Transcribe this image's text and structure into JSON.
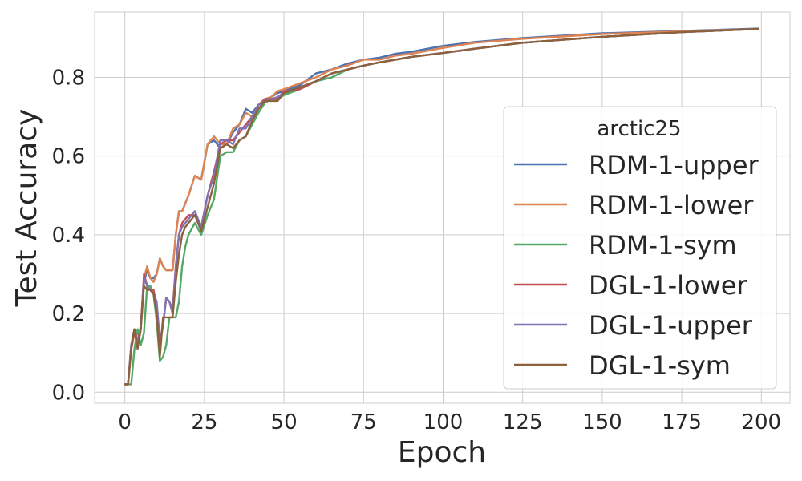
{
  "chart_data": {
    "type": "line",
    "title": "",
    "xlabel": "Epoch",
    "ylabel": "Test Accuracy",
    "xlim": [
      -9.5,
      209
    ],
    "ylim": [
      -0.028,
      0.966
    ],
    "xticks": [
      0,
      25,
      50,
      75,
      100,
      125,
      150,
      175,
      200
    ],
    "yticks": [
      0.0,
      0.2,
      0.4,
      0.6,
      0.8
    ],
    "ytick_labels": [
      "0.0",
      "0.2",
      "0.4",
      "0.6",
      "0.8"
    ],
    "grid": true,
    "legend": {
      "title": "arctic25",
      "placement": "center-right"
    },
    "series": [
      {
        "name": "RDM-1-upper",
        "color": "#4c72b0",
        "x": [
          0,
          1,
          2,
          3,
          4,
          5,
          6,
          7,
          8,
          9,
          10,
          11,
          12,
          13,
          14,
          15,
          16,
          17,
          18,
          19,
          20,
          22,
          24,
          26,
          28,
          30,
          32,
          34,
          36,
          38,
          40,
          42,
          44,
          46,
          48,
          50,
          55,
          60,
          65,
          70,
          75,
          80,
          85,
          90,
          100,
          110,
          125,
          150,
          175,
          199
        ],
        "y": [
          0.02,
          0.02,
          0.11,
          0.15,
          0.12,
          0.17,
          0.28,
          0.31,
          0.29,
          0.29,
          0.3,
          0.34,
          0.32,
          0.31,
          0.31,
          0.31,
          0.4,
          0.46,
          0.46,
          0.48,
          0.5,
          0.55,
          0.54,
          0.63,
          0.64,
          0.62,
          0.63,
          0.66,
          0.68,
          0.72,
          0.71,
          0.73,
          0.74,
          0.75,
          0.76,
          0.765,
          0.78,
          0.81,
          0.82,
          0.835,
          0.845,
          0.85,
          0.86,
          0.865,
          0.88,
          0.89,
          0.9,
          0.912,
          0.918,
          0.924
        ]
      },
      {
        "name": "RDM-1-lower",
        "color": "#dd8452",
        "x": [
          0,
          1,
          2,
          3,
          4,
          5,
          6,
          7,
          8,
          9,
          10,
          11,
          12,
          13,
          14,
          15,
          16,
          17,
          18,
          19,
          20,
          22,
          24,
          26,
          28,
          30,
          32,
          34,
          36,
          38,
          40,
          42,
          44,
          46,
          48,
          50,
          55,
          60,
          65,
          70,
          75,
          80,
          85,
          90,
          100,
          110,
          125,
          150,
          175,
          199
        ],
        "y": [
          0.02,
          0.02,
          0.11,
          0.15,
          0.12,
          0.17,
          0.29,
          0.32,
          0.29,
          0.28,
          0.3,
          0.34,
          0.32,
          0.31,
          0.31,
          0.31,
          0.4,
          0.46,
          0.46,
          0.48,
          0.5,
          0.55,
          0.54,
          0.63,
          0.65,
          0.63,
          0.63,
          0.67,
          0.68,
          0.71,
          0.7,
          0.73,
          0.745,
          0.75,
          0.765,
          0.77,
          0.785,
          0.8,
          0.82,
          0.83,
          0.845,
          0.845,
          0.855,
          0.86,
          0.875,
          0.888,
          0.898,
          0.91,
          0.917,
          0.923
        ]
      },
      {
        "name": "RDM-1-sym",
        "color": "#55a868",
        "x": [
          0,
          1,
          2,
          3,
          4,
          5,
          6,
          7,
          8,
          9,
          10,
          11,
          12,
          13,
          14,
          15,
          16,
          17,
          18,
          19,
          20,
          22,
          24,
          26,
          28,
          30,
          32,
          34,
          36,
          38,
          40,
          42,
          44,
          46,
          48,
          50,
          55,
          60,
          65,
          70,
          75,
          80,
          85,
          90,
          100,
          110,
          125,
          150,
          175,
          199
        ],
        "y": [
          0.02,
          0.02,
          0.02,
          0.11,
          0.16,
          0.12,
          0.15,
          0.27,
          0.27,
          0.25,
          0.18,
          0.08,
          0.09,
          0.12,
          0.19,
          0.19,
          0.19,
          0.23,
          0.32,
          0.37,
          0.4,
          0.43,
          0.4,
          0.45,
          0.49,
          0.6,
          0.61,
          0.61,
          0.64,
          0.65,
          0.68,
          0.71,
          0.735,
          0.745,
          0.745,
          0.755,
          0.77,
          0.79,
          0.8,
          0.82,
          0.83,
          0.838,
          0.845,
          0.852,
          0.862,
          0.873,
          0.888,
          0.903,
          0.915,
          0.923
        ]
      },
      {
        "name": "DGL-1-lower",
        "color": "#c44e52",
        "x": [
          0,
          1,
          2,
          3,
          4,
          5,
          6,
          7,
          8,
          9,
          10,
          11,
          12,
          13,
          14,
          15,
          16,
          17,
          18,
          19,
          20,
          22,
          24,
          26,
          28,
          30,
          32,
          34,
          36,
          38,
          40,
          42,
          44,
          46,
          48,
          50,
          55,
          60,
          65,
          70,
          75,
          80,
          85,
          90,
          100,
          110,
          125,
          150,
          175,
          199
        ],
        "y": [
          0.02,
          0.02,
          0.12,
          0.16,
          0.13,
          0.16,
          0.3,
          0.27,
          0.26,
          0.26,
          0.22,
          0.12,
          0.17,
          0.24,
          0.23,
          0.21,
          0.32,
          0.4,
          0.43,
          0.44,
          0.45,
          0.45,
          0.42,
          0.5,
          0.56,
          0.63,
          0.64,
          0.64,
          0.66,
          0.68,
          0.7,
          0.73,
          0.745,
          0.745,
          0.745,
          0.765,
          0.77,
          0.79,
          0.81,
          0.82,
          0.83,
          0.838,
          0.845,
          0.852,
          0.862,
          0.873,
          0.888,
          0.903,
          0.915,
          0.923
        ]
      },
      {
        "name": "DGL-1-upper",
        "color": "#8172b3",
        "x": [
          0,
          1,
          2,
          3,
          4,
          5,
          6,
          7,
          8,
          9,
          10,
          11,
          12,
          13,
          14,
          15,
          16,
          17,
          18,
          19,
          20,
          22,
          24,
          26,
          28,
          30,
          32,
          34,
          36,
          38,
          40,
          42,
          44,
          46,
          48,
          50,
          55,
          60,
          65,
          70,
          75,
          80,
          85,
          90,
          100,
          110,
          125,
          150,
          175,
          199
        ],
        "y": [
          0.02,
          0.02,
          0.12,
          0.16,
          0.12,
          0.16,
          0.29,
          0.27,
          0.26,
          0.25,
          0.23,
          0.13,
          0.17,
          0.24,
          0.23,
          0.2,
          0.32,
          0.4,
          0.42,
          0.43,
          0.44,
          0.46,
          0.42,
          0.5,
          0.55,
          0.64,
          0.64,
          0.63,
          0.67,
          0.67,
          0.7,
          0.73,
          0.74,
          0.745,
          0.75,
          0.76,
          0.775,
          0.79,
          0.81,
          0.82,
          0.83,
          0.838,
          0.845,
          0.852,
          0.862,
          0.873,
          0.888,
          0.903,
          0.915,
          0.923
        ]
      },
      {
        "name": "DGL-1-sym",
        "color": "#8c613c",
        "x": [
          0,
          1,
          2,
          3,
          4,
          5,
          6,
          7,
          8,
          9,
          10,
          11,
          12,
          13,
          14,
          15,
          16,
          17,
          18,
          19,
          20,
          22,
          24,
          26,
          28,
          30,
          32,
          34,
          36,
          38,
          40,
          42,
          44,
          46,
          48,
          50,
          55,
          60,
          65,
          70,
          75,
          80,
          85,
          90,
          100,
          110,
          125,
          150,
          175,
          199
        ],
        "y": [
          0.02,
          0.02,
          0.11,
          0.16,
          0.11,
          0.16,
          0.27,
          0.26,
          0.26,
          0.25,
          0.2,
          0.09,
          0.19,
          0.19,
          0.19,
          0.19,
          0.28,
          0.35,
          0.4,
          0.42,
          0.43,
          0.45,
          0.41,
          0.47,
          0.53,
          0.62,
          0.63,
          0.62,
          0.64,
          0.65,
          0.69,
          0.72,
          0.74,
          0.74,
          0.74,
          0.76,
          0.775,
          0.79,
          0.81,
          0.82,
          0.83,
          0.838,
          0.845,
          0.852,
          0.862,
          0.873,
          0.888,
          0.903,
          0.915,
          0.923
        ]
      }
    ]
  }
}
